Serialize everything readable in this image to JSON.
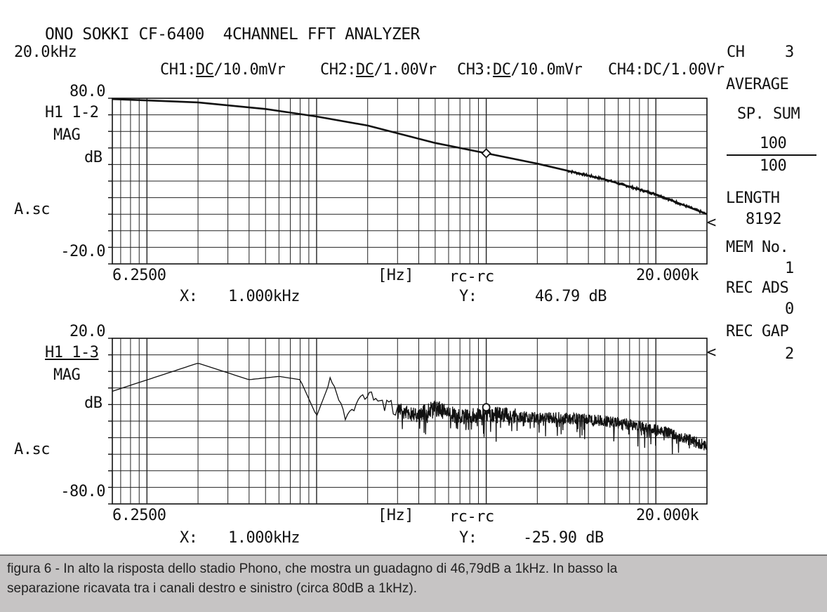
{
  "header": {
    "title": "ONO SOKKI CF-6400  4CHANNEL FFT ANALYZER",
    "freq_span": "20.0kHz",
    "ch1_label": "CH1:",
    "ch1_coupling": "DC",
    "ch1_range": "/10.0mVr",
    "ch2_label": "CH2:",
    "ch2_coupling": "DC",
    "ch2_range": "/1.00Vr",
    "ch3_label": "CH3:",
    "ch3_coupling": "DC",
    "ch3_range": "/10.0mVr",
    "ch4_label": "CH4:",
    "ch4_value": "DC/1.00Vr"
  },
  "side_panel": {
    "ch_label": "CH",
    "ch_value": "3",
    "average": "AVERAGE",
    "sp_sum": "SP. SUM",
    "count_top": "100",
    "count_bottom": "100",
    "length_label": "LENGTH",
    "length_value": "8192",
    "mem_label": "MEM No.",
    "mem_value": "1",
    "rec_ads_label": "REC ADS",
    "rec_ads_value": "0",
    "rec_gap_label": "REC GAP",
    "rec_gap_value": "2",
    "arrow_glyph": "<"
  },
  "caption": {
    "line1": "figura 6 - In alto la risposta dello stadio Phono, che mostra un guadagno di 46,79dB a 1kHz. In basso la",
    "line2": "separazione ricavata tra i canali destro e sinistro (circa 80dB a 1kHz)."
  },
  "chart_data": [
    {
      "type": "line",
      "function": "H1 1-2",
      "display": "MAG",
      "unit": "dB",
      "scale": "A.sc",
      "x_scale": "log",
      "xlim": [
        6.25,
        20000
      ],
      "ylim": [
        -20,
        80
      ],
      "y_top_label": "80.0",
      "y_bottom_label": "-20.0",
      "x_start_label": "6.2500",
      "x_end_label": "20.000k",
      "x_unit_label": "[Hz]",
      "mode_label": "rc-rc",
      "cursor_x_label": "X:",
      "cursor_x_value": "1.000kHz",
      "cursor_y_label": "Y:",
      "cursor_y_value": "46.79 dB",
      "cursor": {
        "x": 1000,
        "y": 46.79
      },
      "series": [
        {
          "x": [
            6.25,
            20,
            50,
            100,
            200,
            500,
            1000,
            2000,
            5000,
            10000,
            20000
          ],
          "y": [
            79.5,
            77.5,
            73.5,
            69.0,
            63.5,
            53.0,
            46.79,
            40.5,
            31.0,
            22.0,
            10.0
          ]
        }
      ]
    },
    {
      "type": "line",
      "function": "H1 1-3",
      "display": "MAG",
      "unit": "dB",
      "scale": "A.sc",
      "x_scale": "log",
      "xlim": [
        6.25,
        20000
      ],
      "ylim": [
        -80,
        20
      ],
      "y_top_label": "20.0",
      "y_bottom_label": "-80.0",
      "x_start_label": "6.2500",
      "x_end_label": "20.000k",
      "x_unit_label": "[Hz]",
      "mode_label": "rc-rc",
      "cursor_x_label": "X:",
      "cursor_x_value": "1.000kHz",
      "cursor_y_label": "Y:",
      "cursor_y_value": "-25.90 dB",
      "cursor": {
        "x": 1000,
        "y": -25.9
      },
      "series": [
        {
          "x": [
            6.25,
            20,
            40,
            60,
            80,
            100,
            120,
            150,
            200,
            300,
            400,
            500,
            700,
            1000,
            2000,
            3000,
            5000,
            8000,
            12000,
            20000
          ],
          "y": [
            -12,
            5,
            -5,
            -3,
            -5,
            -27,
            -6,
            -28,
            -13,
            -24,
            -26,
            -22,
            -28,
            -25.9,
            -28,
            -28,
            -30,
            -33,
            -37,
            -45
          ]
        }
      ]
    }
  ]
}
